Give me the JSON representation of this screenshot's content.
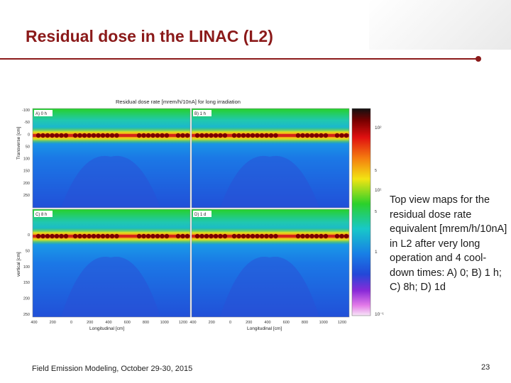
{
  "slide": {
    "title": "Residual dose in the LINAC (L2)",
    "description": "Top view maps for the residual dose rate equivalent [mrem/h/10nA] in L2 after very long operation and 4 cool-down times: A) 0; B) 1 h; C) 8h; D) 1d",
    "footer": "Field Emission Modeling, October 29-30, 2015",
    "page_number": "23"
  },
  "figure": {
    "title": "Residual dose rate [mrem/h/10nA] for long irradiation",
    "panels": [
      {
        "label": "A) 0 h"
      },
      {
        "label": "B) 1 h"
      },
      {
        "label": "C) 8 h"
      },
      {
        "label": "D) 1 d"
      }
    ],
    "y_label_top": "Transverse [cm]",
    "y_label_bottom": "vertical [cm]",
    "x_label": "Longitudinal [cm]",
    "y_ticks_top": [
      "-100",
      "-50",
      "0",
      "50",
      "100",
      "150",
      "200",
      "250"
    ],
    "y_ticks_bottom": [
      "0",
      "50",
      "100",
      "150",
      "200",
      "250"
    ],
    "x_ticks": [
      "400",
      "200",
      "0",
      "200",
      "400",
      "600",
      "800",
      "1000",
      "1200"
    ],
    "colorbar_labels": [
      "10²",
      "10¹",
      "1",
      "10⁻¹"
    ],
    "colorbar_minor": [
      "5",
      "5"
    ]
  },
  "colors": {
    "title": "#8b1a1a",
    "rule": "#8b1a1a"
  }
}
